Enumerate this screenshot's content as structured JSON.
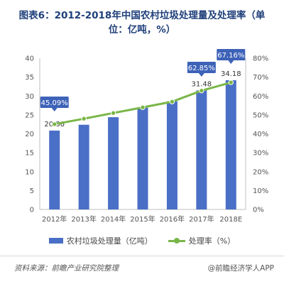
{
  "title": "图表6：2012-2018年中国农村垃圾处理量及处理率（单位：亿吨，%）",
  "chart_data": {
    "type": "bar",
    "categories": [
      "2012年",
      "2013年",
      "2014年",
      "2015年",
      "2016年",
      "2017年",
      "2018E"
    ],
    "series": [
      {
        "name": "农村垃圾处理量（亿吨）",
        "type": "bar",
        "axis": "left",
        "values": [
          20.86,
          22.4,
          24.4,
          26.9,
          28.6,
          31.48,
          34.18
        ],
        "labels": [
          "20.86",
          "",
          "",
          "",
          "",
          "31.48",
          "34.18"
        ]
      },
      {
        "name": "处理率（%）",
        "type": "line",
        "axis": "right",
        "values": [
          45.09,
          48.0,
          51.0,
          54.0,
          57.0,
          62.85,
          67.16
        ],
        "labels": [
          "45.09%",
          "",
          "",
          "",
          "",
          "62.85%",
          "67.16%"
        ]
      }
    ],
    "y_left": {
      "ylim": [
        0,
        40
      ],
      "ticks": [
        "0",
        "5",
        "10",
        "15",
        "20",
        "25",
        "30",
        "35",
        "40"
      ]
    },
    "y_right": {
      "ylim": [
        0,
        80
      ],
      "ticks": [
        "0%",
        "10%",
        "20%",
        "30%",
        "40%",
        "50%",
        "60%",
        "70%",
        "80%"
      ]
    },
    "grid": false,
    "legend_position": "bottom",
    "colors": {
      "bar": "#4a6fc6",
      "line": "#7ab648",
      "callout": "#3d62b8",
      "title": "#1f3f7a"
    }
  },
  "footer": {
    "source": "资料来源：前瞻产业研究院整理",
    "credit": "@前瞻经济学人APP"
  }
}
